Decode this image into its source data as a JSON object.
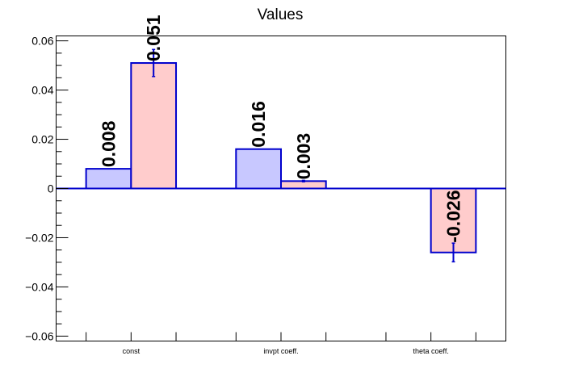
{
  "chart_data": {
    "type": "bar",
    "title": "Values",
    "xlabel": "",
    "ylabel": "",
    "categories": [
      "const",
      "invpt coeff.",
      "theta coeff."
    ],
    "ylim": [
      -0.062,
      0.062
    ],
    "yticks": [
      -0.06,
      -0.04,
      -0.02,
      0,
      0.02,
      0.04,
      0.06
    ],
    "ytick_labels": [
      "−0.06",
      "−0.04",
      "−0.02",
      "0",
      "0.02",
      "0.04",
      "0.06"
    ],
    "grid": false,
    "legend": "none",
    "series": [
      {
        "color": "#c8c8ff",
        "edge": "#0000cc",
        "values": [
          0.008,
          0.016,
          null
        ],
        "errors": [
          0,
          0,
          0
        ],
        "labels": [
          "0.008",
          "0.016",
          ""
        ]
      },
      {
        "color": "#ffcccc",
        "edge": "#0000cc",
        "values": [
          0.051,
          0.003,
          -0.026
        ],
        "errors": [
          0.0055,
          0.0003,
          0.0038
        ],
        "labels": [
          "0.051",
          "0.003",
          "-0.026"
        ]
      }
    ]
  }
}
